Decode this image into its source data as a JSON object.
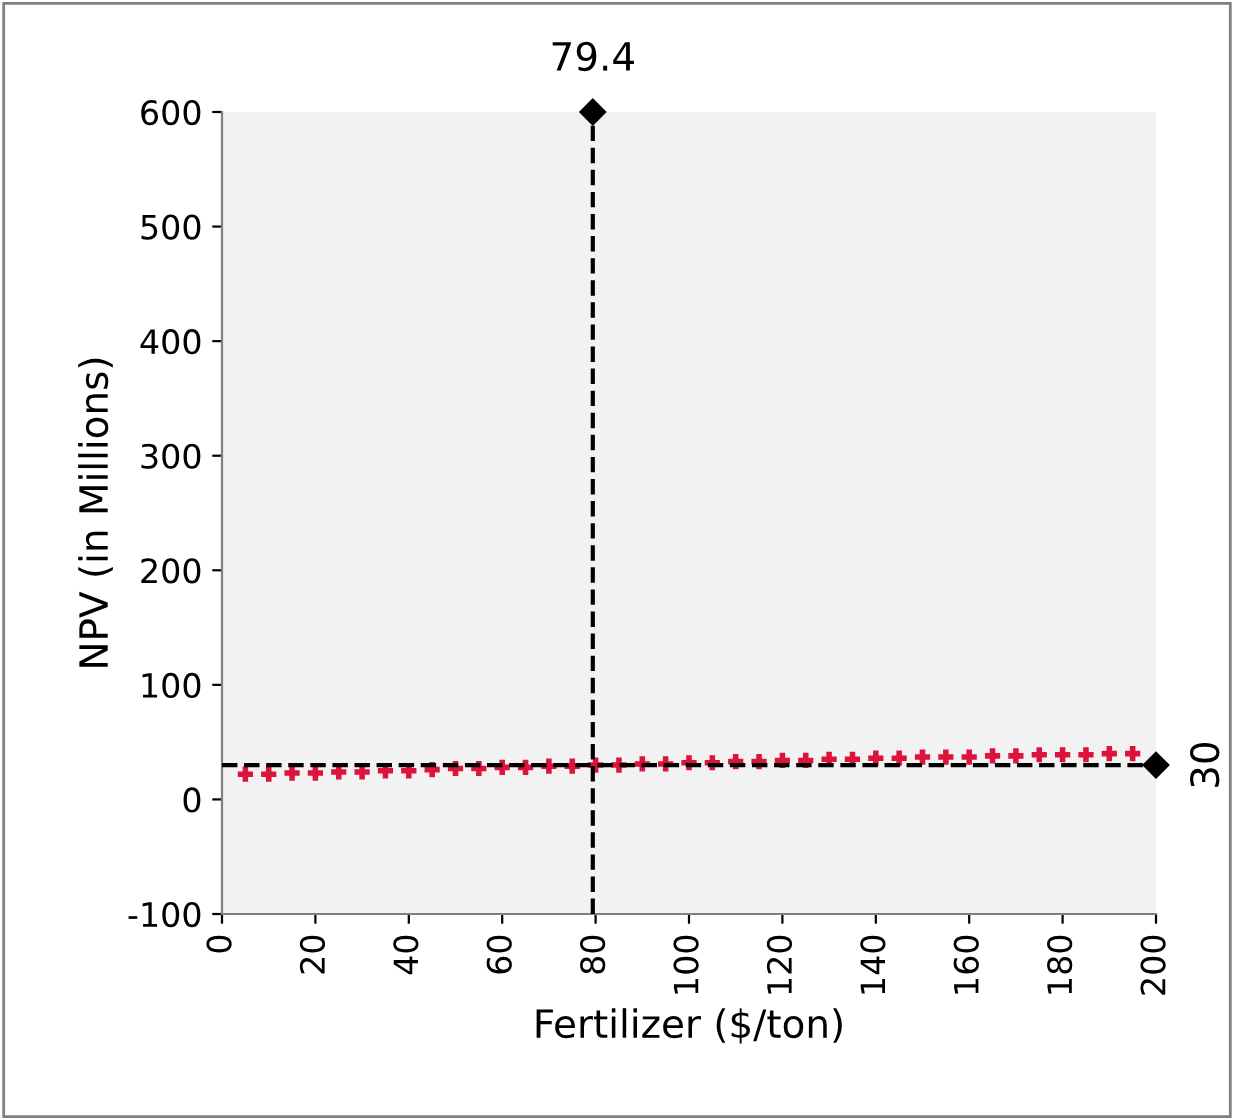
{
  "chart_data": {
    "type": "scatter",
    "xlabel": "Fertilizer ($/ton)",
    "ylabel": "NPV (in Millions)",
    "xlim": [
      0,
      200
    ],
    "xticks": [
      0,
      20,
      40,
      60,
      80,
      100,
      120,
      140,
      160,
      180,
      200
    ],
    "ylim": [
      -100,
      600
    ],
    "yticks": [
      -100,
      0,
      100,
      200,
      300,
      400,
      500,
      600
    ],
    "grid": false,
    "marker": "cross",
    "series": [
      {
        "color": "#dc143c",
        "x": [
          5,
          10,
          15,
          20,
          25,
          30,
          35,
          40,
          45,
          50,
          55,
          60,
          65,
          70,
          75,
          80,
          85,
          90,
          95,
          100,
          105,
          110,
          115,
          120,
          125,
          130,
          135,
          140,
          145,
          150,
          155,
          160,
          165,
          170,
          175,
          180,
          185,
          190,
          195
        ],
        "values": [
          22,
          22,
          23,
          23,
          24,
          24,
          25,
          25,
          26,
          27,
          27,
          28,
          28,
          29,
          29,
          30,
          30,
          31,
          31,
          32,
          32,
          33,
          33,
          34,
          34,
          35,
          35,
          36,
          36,
          37,
          37,
          37,
          38,
          38,
          39,
          39,
          39,
          40,
          40
        ]
      },
      {
        "color": "#000000",
        "marker": "diamond",
        "x": [
          79.4,
          200
        ],
        "values": [
          600,
          30
        ]
      }
    ],
    "ref_lines": [
      {
        "axis": "x",
        "value": 79.4,
        "label": "79.4",
        "color": "#000000",
        "line_style": "dashed"
      },
      {
        "axis": "y",
        "value": 30,
        "label": "30",
        "color": "#000000",
        "line_style": "dashed"
      }
    ]
  }
}
